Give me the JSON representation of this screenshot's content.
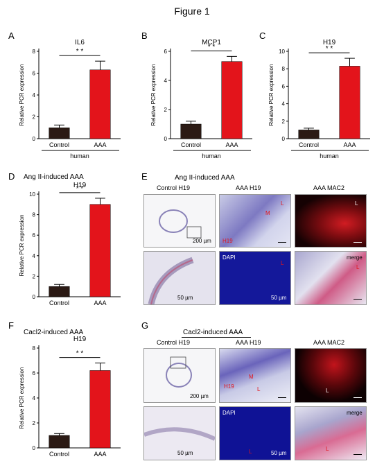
{
  "figure_title": "Figure 1",
  "panels": {
    "A": {
      "letter": "A"
    },
    "B": {
      "letter": "B"
    },
    "C": {
      "letter": "C"
    },
    "D": {
      "letter": "D",
      "heading": "Ang II-induced AAA"
    },
    "E": {
      "letter": "E",
      "heading": "Ang II-induced AAA",
      "col_labels": [
        "Control  H19",
        "AAA  H19",
        "AAA  MAC2"
      ],
      "scale_top": "200 µm",
      "scale_bottom": "50 µm",
      "scale_dapi": "50 µm",
      "annot": {
        "M": "M",
        "L": "L",
        "H19": "H19",
        "DAPI": "DAPI",
        "merge": "merge"
      }
    },
    "F": {
      "letter": "F",
      "heading": "Cacl2-induced AAA"
    },
    "G": {
      "letter": "G",
      "heading": "Cacl2-induced AAA",
      "col_labels": [
        "Control  H19",
        "AAA  H19",
        "AAA  MAC2"
      ],
      "scale_top": "200 µm",
      "scale_bottom": "50 µm",
      "scale_dapi": "50 µm",
      "annot": {
        "M": "M",
        "L": "L",
        "H19": "H19",
        "DAPI": "DAPI",
        "merge": "merge"
      }
    }
  },
  "colors": {
    "control": "#2b1a14",
    "aaa": "#e3141b",
    "he_bg": "#dcdfee",
    "dapi": "#1a1da6",
    "mac2": "#c2141c",
    "tissue": "#5a4fa0"
  },
  "chart_data": [
    {
      "panel": "A",
      "type": "bar",
      "title": "IL6",
      "ylabel": "Relative PCR expression",
      "categories": [
        "Control",
        "AAA"
      ],
      "values": [
        1.0,
        6.3
      ],
      "errors": [
        0.25,
        0.8
      ],
      "ylim": [
        0,
        8
      ],
      "yticks": [
        0,
        2,
        4,
        6,
        8
      ],
      "group_label": "human",
      "significance": "* *"
    },
    {
      "panel": "B",
      "type": "bar",
      "title": "MCP1",
      "ylabel": "Relative PCR expression",
      "categories": [
        "Control",
        "AAA"
      ],
      "values": [
        1.0,
        5.3
      ],
      "errors": [
        0.2,
        0.35
      ],
      "ylim": [
        0,
        6
      ],
      "yticks": [
        0,
        2,
        4,
        6
      ],
      "group_label": "human",
      "significance": "* *"
    },
    {
      "panel": "C",
      "type": "bar",
      "title": "H19",
      "ylabel": "Relative PCR expression",
      "categories": [
        "Control",
        "AAA"
      ],
      "values": [
        1.0,
        8.3
      ],
      "errors": [
        0.2,
        0.9
      ],
      "ylim": [
        0,
        10
      ],
      "yticks": [
        0,
        2,
        4,
        6,
        8,
        10
      ],
      "group_label": "human",
      "significance": "* *"
    },
    {
      "panel": "D",
      "type": "bar",
      "title": "H19",
      "ylabel": "Relative PCR expression",
      "categories": [
        "Control",
        "AAA"
      ],
      "values": [
        1.0,
        9.0
      ],
      "errors": [
        0.2,
        0.6
      ],
      "ylim": [
        0,
        10
      ],
      "yticks": [
        0,
        2,
        4,
        6,
        8,
        10
      ],
      "group_label": "",
      "significance": "* *"
    },
    {
      "panel": "F",
      "type": "bar",
      "title": "H19",
      "ylabel": "Relative PCR expression",
      "categories": [
        "Control",
        "AAA"
      ],
      "values": [
        1.0,
        6.2
      ],
      "errors": [
        0.15,
        0.6
      ],
      "ylim": [
        0,
        8
      ],
      "yticks": [
        0,
        2,
        4,
        6,
        8
      ],
      "group_label": "",
      "significance": "* *"
    }
  ]
}
